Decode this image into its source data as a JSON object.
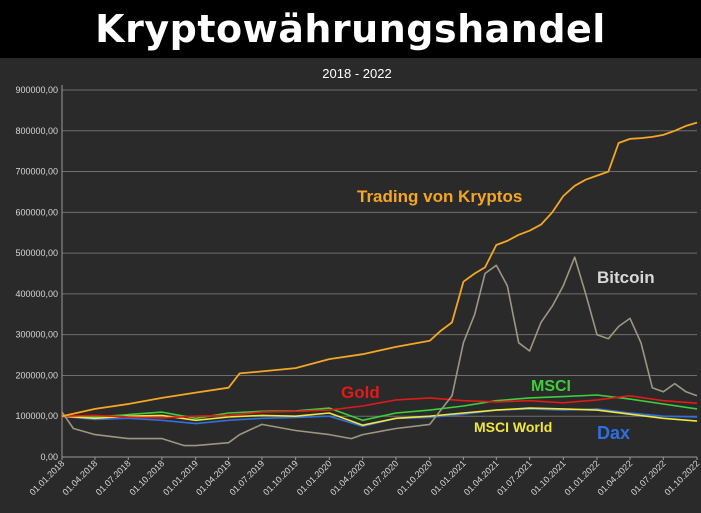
{
  "chart_data": {
    "type": "line",
    "title": "Kryptowährungshandel",
    "subtitle": "2018 - 2022",
    "xlabel": "",
    "ylabel": "",
    "ylim": [
      0,
      900000
    ],
    "yticks": [
      "0,00",
      "100000,00",
      "200000,00",
      "300000,00",
      "400000,00",
      "500000,00",
      "600000,00",
      "700000,00",
      "800000,00",
      "900000,00"
    ],
    "xticks": [
      "01.01.2018",
      "01.04.2018",
      "01.07.2018",
      "01.10.2018",
      "01.01.2019",
      "01.04.2019",
      "01.07.2019",
      "01.10.2019",
      "01.01.2020",
      "01.04.2020",
      "01.07.2020",
      "01.10.2020",
      "01.01.2021",
      "01.04.2021",
      "01.07.2021",
      "01.10.2021",
      "01.01.2022",
      "01.04.2022",
      "01.07.2022",
      "01.10.2022"
    ],
    "grid": true,
    "series": [
      {
        "name": "Trading von Kryptos",
        "color": "#f5a623",
        "label_color": "#f5a623",
        "points": [
          [
            "01.01.2018",
            100000
          ],
          [
            "01.04.2018",
            118000
          ],
          [
            "01.07.2018",
            130000
          ],
          [
            "01.10.2018",
            145000
          ],
          [
            "01.01.2019",
            158000
          ],
          [
            "01.04.2019",
            170000
          ],
          [
            "01.05.2019",
            205000
          ],
          [
            "01.07.2019",
            210000
          ],
          [
            "01.10.2019",
            218000
          ],
          [
            "01.01.2020",
            240000
          ],
          [
            "01.04.2020",
            252000
          ],
          [
            "01.07.2020",
            270000
          ],
          [
            "01.10.2020",
            285000
          ],
          [
            "01.11.2020",
            310000
          ],
          [
            "01.12.2020",
            330000
          ],
          [
            "01.01.2021",
            430000
          ],
          [
            "01.02.2021",
            450000
          ],
          [
            "01.03.2021",
            465000
          ],
          [
            "01.04.2021",
            520000
          ],
          [
            "01.05.2021",
            530000
          ],
          [
            "01.06.2021",
            545000
          ],
          [
            "01.07.2021",
            555000
          ],
          [
            "01.08.2021",
            570000
          ],
          [
            "01.09.2021",
            600000
          ],
          [
            "01.10.2021",
            640000
          ],
          [
            "01.11.2021",
            665000
          ],
          [
            "01.12.2021",
            680000
          ],
          [
            "01.01.2022",
            690000
          ],
          [
            "01.02.2022",
            700000
          ],
          [
            "01.03.2022",
            770000
          ],
          [
            "01.04.2022",
            780000
          ],
          [
            "01.05.2022",
            782000
          ],
          [
            "01.06.2022",
            785000
          ],
          [
            "01.07.2022",
            790000
          ],
          [
            "01.08.2022",
            800000
          ],
          [
            "01.09.2022",
            812000
          ],
          [
            "01.10.2022",
            820000
          ]
        ]
      },
      {
        "name": "Bitcoin",
        "color": "#9c9684",
        "label_color": "#d8d8d8",
        "points": [
          [
            "01.01.2018",
            110000
          ],
          [
            "01.02.2018",
            70000
          ],
          [
            "01.04.2018",
            55000
          ],
          [
            "01.07.2018",
            45000
          ],
          [
            "01.10.2018",
            45000
          ],
          [
            "01.12.2018",
            28000
          ],
          [
            "01.01.2019",
            28000
          ],
          [
            "01.04.2019",
            35000
          ],
          [
            "01.05.2019",
            55000
          ],
          [
            "01.07.2019",
            80000
          ],
          [
            "01.10.2019",
            65000
          ],
          [
            "01.01.2020",
            55000
          ],
          [
            "01.03.2020",
            45000
          ],
          [
            "01.04.2020",
            55000
          ],
          [
            "01.07.2020",
            70000
          ],
          [
            "01.10.2020",
            80000
          ],
          [
            "01.12.2020",
            150000
          ],
          [
            "01.01.2021",
            280000
          ],
          [
            "01.02.2021",
            350000
          ],
          [
            "01.03.2021",
            450000
          ],
          [
            "01.04.2021",
            470000
          ],
          [
            "01.05.2021",
            420000
          ],
          [
            "01.06.2021",
            280000
          ],
          [
            "01.07.2021",
            260000
          ],
          [
            "01.08.2021",
            330000
          ],
          [
            "01.09.2021",
            370000
          ],
          [
            "01.10.2021",
            420000
          ],
          [
            "01.11.2021",
            490000
          ],
          [
            "01.12.2021",
            400000
          ],
          [
            "01.01.2022",
            300000
          ],
          [
            "01.02.2022",
            290000
          ],
          [
            "01.03.2022",
            320000
          ],
          [
            "01.04.2022",
            340000
          ],
          [
            "01.05.2022",
            280000
          ],
          [
            "01.06.2022",
            170000
          ],
          [
            "01.07.2022",
            160000
          ],
          [
            "01.08.2022",
            180000
          ],
          [
            "01.09.2022",
            160000
          ],
          [
            "01.10.2022",
            150000
          ]
        ]
      },
      {
        "name": "Gold",
        "color": "#e11a1a",
        "label_color": "#e11a1a",
        "points": [
          [
            "01.01.2018",
            100000
          ],
          [
            "01.04.2018",
            102000
          ],
          [
            "01.07.2018",
            98000
          ],
          [
            "01.10.2018",
            96000
          ],
          [
            "01.01.2019",
            100000
          ],
          [
            "01.04.2019",
            102000
          ],
          [
            "01.07.2019",
            110000
          ],
          [
            "01.10.2019",
            112000
          ],
          [
            "01.01.2020",
            115000
          ],
          [
            "01.04.2020",
            125000
          ],
          [
            "01.07.2020",
            140000
          ],
          [
            "01.10.2020",
            145000
          ],
          [
            "01.01.2021",
            138000
          ],
          [
            "01.04.2021",
            135000
          ],
          [
            "01.07.2021",
            138000
          ],
          [
            "01.10.2021",
            133000
          ],
          [
            "01.01.2022",
            140000
          ],
          [
            "01.04.2022",
            150000
          ],
          [
            "01.07.2022",
            138000
          ],
          [
            "01.10.2022",
            132000
          ]
        ]
      },
      {
        "name": "MSCI",
        "color": "#3ccf3c",
        "label_color": "#3ccf3c",
        "points": [
          [
            "01.01.2018",
            100000
          ],
          [
            "01.04.2018",
            98000
          ],
          [
            "01.07.2018",
            104000
          ],
          [
            "01.10.2018",
            110000
          ],
          [
            "01.01.2019",
            95000
          ],
          [
            "01.04.2019",
            108000
          ],
          [
            "01.07.2019",
            112000
          ],
          [
            "01.10.2019",
            113000
          ],
          [
            "01.01.2020",
            120000
          ],
          [
            "01.04.2020",
            90000
          ],
          [
            "01.07.2020",
            108000
          ],
          [
            "01.10.2020",
            115000
          ],
          [
            "01.01.2021",
            125000
          ],
          [
            "01.04.2021",
            138000
          ],
          [
            "01.07.2021",
            145000
          ],
          [
            "01.10.2021",
            148000
          ],
          [
            "01.01.2022",
            152000
          ],
          [
            "01.04.2022",
            142000
          ],
          [
            "01.07.2022",
            130000
          ],
          [
            "01.10.2022",
            118000
          ]
        ]
      },
      {
        "name": "MSCI World",
        "color": "#f0e63c",
        "label_color": "#f0e63c",
        "points": [
          [
            "01.01.2018",
            100000
          ],
          [
            "01.04.2018",
            95000
          ],
          [
            "01.07.2018",
            100000
          ],
          [
            "01.10.2018",
            102000
          ],
          [
            "01.01.2019",
            90000
          ],
          [
            "01.04.2019",
            98000
          ],
          [
            "01.07.2019",
            102000
          ],
          [
            "01.10.2019",
            100000
          ],
          [
            "01.01.2020",
            108000
          ],
          [
            "01.04.2020",
            78000
          ],
          [
            "01.07.2020",
            95000
          ],
          [
            "01.10.2020",
            100000
          ],
          [
            "01.01.2021",
            108000
          ],
          [
            "01.04.2021",
            115000
          ],
          [
            "01.07.2021",
            120000
          ],
          [
            "01.10.2021",
            118000
          ],
          [
            "01.01.2022",
            115000
          ],
          [
            "01.04.2022",
            105000
          ],
          [
            "01.07.2022",
            95000
          ],
          [
            "01.10.2022",
            88000
          ]
        ]
      },
      {
        "name": "Dax",
        "color": "#2f6fe0",
        "label_color": "#2f6fe0",
        "points": [
          [
            "01.01.2018",
            100000
          ],
          [
            "01.04.2018",
            92000
          ],
          [
            "01.07.2018",
            95000
          ],
          [
            "01.10.2018",
            90000
          ],
          [
            "01.01.2019",
            82000
          ],
          [
            "01.04.2019",
            90000
          ],
          [
            "01.07.2019",
            95000
          ],
          [
            "01.10.2019",
            97000
          ],
          [
            "01.01.2020",
            100000
          ],
          [
            "01.04.2020",
            75000
          ],
          [
            "01.07.2020",
            95000
          ],
          [
            "01.10.2020",
            97000
          ],
          [
            "01.01.2021",
            105000
          ],
          [
            "01.04.2021",
            115000
          ],
          [
            "01.07.2021",
            118000
          ],
          [
            "01.10.2021",
            115000
          ],
          [
            "01.01.2022",
            118000
          ],
          [
            "01.04.2022",
            108000
          ],
          [
            "01.07.2022",
            100000
          ],
          [
            "01.10.2022",
            98000
          ]
        ]
      }
    ]
  }
}
